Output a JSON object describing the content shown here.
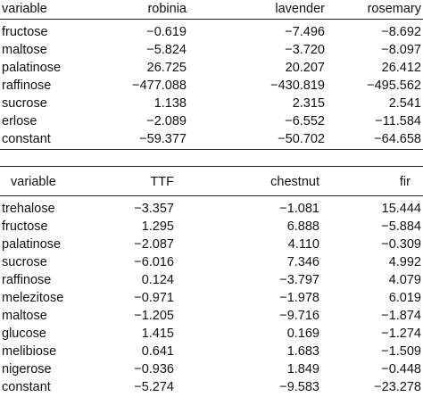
{
  "table1": {
    "headers": [
      "variable",
      "robinia",
      "lavender",
      "rosemary"
    ],
    "rows": [
      [
        "fructose",
        "−0.619",
        "−7.496",
        "−8.692"
      ],
      [
        "maltose",
        "−5.824",
        "−3.720",
        "−8.097"
      ],
      [
        "palatinose",
        "26.725",
        "20.207",
        "26.412"
      ],
      [
        "raffinose",
        "−477.088",
        "−430.819",
        "−495.562"
      ],
      [
        "sucrose",
        "1.138",
        "2.315",
        "2.541"
      ],
      [
        "erlose",
        "−2.089",
        "−6.552",
        "−11.584"
      ],
      [
        "constant",
        "−59.377",
        "−50.702",
        "−64.658"
      ]
    ]
  },
  "table2": {
    "headers": [
      "variable",
      "TTF",
      "chestnut",
      "fir"
    ],
    "rows": [
      [
        "trehalose",
        "−3.357",
        "−1.081",
        "15.444"
      ],
      [
        "fructose",
        "1.295",
        "6.888",
        "−5.884"
      ],
      [
        "palatinose",
        "−2.087",
        "4.110",
        "−0.309"
      ],
      [
        "sucrose",
        "−6.016",
        "7.346",
        "4.992"
      ],
      [
        "raffinose",
        "0.124",
        "−3.797",
        "4.079"
      ],
      [
        "melezitose",
        "−0.971",
        "−1.978",
        "6.019"
      ],
      [
        "maltose",
        "−1.205",
        "−9.716",
        "−1.874"
      ],
      [
        "glucose",
        "1.415",
        "0.169",
        "−1.274"
      ],
      [
        "melibiose",
        "0.641",
        "1.683",
        "−1.509"
      ],
      [
        "nigerose",
        "−0.936",
        "1.849",
        "−0.448"
      ],
      [
        "constant",
        "−5.274",
        "−9.583",
        "−23.278"
      ]
    ]
  }
}
